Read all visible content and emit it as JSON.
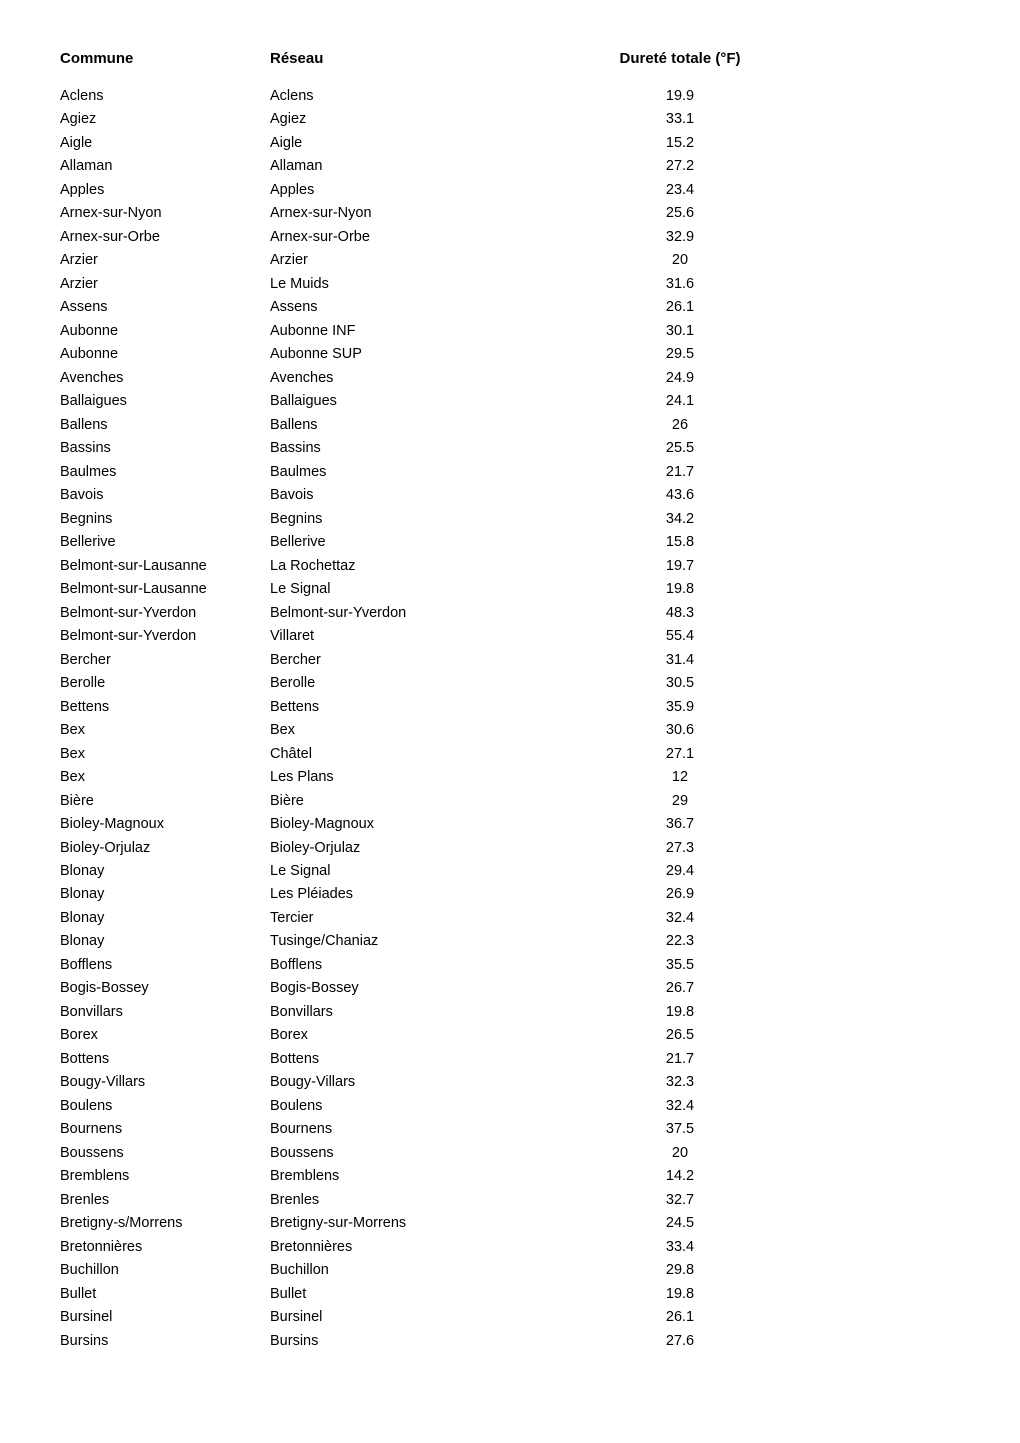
{
  "table": {
    "headers": {
      "commune": "Commune",
      "reseau": "Réseau",
      "durete": "Dureté totale (°F)"
    },
    "rows": [
      {
        "commune": "Aclens",
        "reseau": "Aclens",
        "durete": "19.9"
      },
      {
        "commune": "Agiez",
        "reseau": "Agiez",
        "durete": "33.1"
      },
      {
        "commune": "Aigle",
        "reseau": "Aigle",
        "durete": "15.2"
      },
      {
        "commune": "Allaman",
        "reseau": "Allaman",
        "durete": "27.2"
      },
      {
        "commune": "Apples",
        "reseau": "Apples",
        "durete": "23.4"
      },
      {
        "commune": "Arnex-sur-Nyon",
        "reseau": "Arnex-sur-Nyon",
        "durete": "25.6"
      },
      {
        "commune": "Arnex-sur-Orbe",
        "reseau": "Arnex-sur-Orbe",
        "durete": "32.9"
      },
      {
        "commune": "Arzier",
        "reseau": "Arzier",
        "durete": "20"
      },
      {
        "commune": "Arzier",
        "reseau": "Le Muids",
        "durete": "31.6"
      },
      {
        "commune": "Assens",
        "reseau": "Assens",
        "durete": "26.1"
      },
      {
        "commune": "Aubonne",
        "reseau": "Aubonne INF",
        "durete": "30.1"
      },
      {
        "commune": "Aubonne",
        "reseau": "Aubonne SUP",
        "durete": "29.5"
      },
      {
        "commune": "Avenches",
        "reseau": "Avenches",
        "durete": "24.9"
      },
      {
        "commune": "Ballaigues",
        "reseau": "Ballaigues",
        "durete": "24.1"
      },
      {
        "commune": "Ballens",
        "reseau": "Ballens",
        "durete": "26"
      },
      {
        "commune": "Bassins",
        "reseau": "Bassins",
        "durete": "25.5"
      },
      {
        "commune": "Baulmes",
        "reseau": "Baulmes",
        "durete": "21.7"
      },
      {
        "commune": "Bavois",
        "reseau": "Bavois",
        "durete": "43.6"
      },
      {
        "commune": "Begnins",
        "reseau": "Begnins",
        "durete": "34.2"
      },
      {
        "commune": "Bellerive",
        "reseau": "Bellerive",
        "durete": "15.8"
      },
      {
        "commune": "Belmont-sur-Lausanne",
        "reseau": "La Rochettaz",
        "durete": "19.7"
      },
      {
        "commune": "Belmont-sur-Lausanne",
        "reseau": "Le Signal",
        "durete": "19.8"
      },
      {
        "commune": "Belmont-sur-Yverdon",
        "reseau": "Belmont-sur-Yverdon",
        "durete": "48.3"
      },
      {
        "commune": "Belmont-sur-Yverdon",
        "reseau": "Villaret",
        "durete": "55.4"
      },
      {
        "commune": "Bercher",
        "reseau": "Bercher",
        "durete": "31.4"
      },
      {
        "commune": "Berolle",
        "reseau": "Berolle",
        "durete": "30.5"
      },
      {
        "commune": "Bettens",
        "reseau": "Bettens",
        "durete": "35.9"
      },
      {
        "commune": "Bex",
        "reseau": "Bex",
        "durete": "30.6"
      },
      {
        "commune": "Bex",
        "reseau": "Châtel",
        "durete": "27.1"
      },
      {
        "commune": "Bex",
        "reseau": "Les Plans",
        "durete": "12"
      },
      {
        "commune": "Bière",
        "reseau": "Bière",
        "durete": "29"
      },
      {
        "commune": "Bioley-Magnoux",
        "reseau": "Bioley-Magnoux",
        "durete": "36.7"
      },
      {
        "commune": "Bioley-Orjulaz",
        "reseau": "Bioley-Orjulaz",
        "durete": "27.3"
      },
      {
        "commune": "Blonay",
        "reseau": "Le Signal",
        "durete": "29.4"
      },
      {
        "commune": "Blonay",
        "reseau": "Les Pléiades",
        "durete": "26.9"
      },
      {
        "commune": "Blonay",
        "reseau": "Tercier",
        "durete": "32.4"
      },
      {
        "commune": "Blonay",
        "reseau": "Tusinge/Chaniaz",
        "durete": "22.3"
      },
      {
        "commune": "Bofflens",
        "reseau": "Bofflens",
        "durete": "35.5"
      },
      {
        "commune": "Bogis-Bossey",
        "reseau": "Bogis-Bossey",
        "durete": "26.7"
      },
      {
        "commune": "Bonvillars",
        "reseau": "Bonvillars",
        "durete": "19.8"
      },
      {
        "commune": "Borex",
        "reseau": "Borex",
        "durete": "26.5"
      },
      {
        "commune": "Bottens",
        "reseau": "Bottens",
        "durete": "21.7"
      },
      {
        "commune": "Bougy-Villars",
        "reseau": "Bougy-Villars",
        "durete": "32.3"
      },
      {
        "commune": "Boulens",
        "reseau": "Boulens",
        "durete": "32.4"
      },
      {
        "commune": "Bournens",
        "reseau": "Bournens",
        "durete": "37.5"
      },
      {
        "commune": "Boussens",
        "reseau": "Boussens",
        "durete": "20"
      },
      {
        "commune": "Bremblens",
        "reseau": "Bremblens",
        "durete": "14.2"
      },
      {
        "commune": "Brenles",
        "reseau": "Brenles",
        "durete": "32.7"
      },
      {
        "commune": "Bretigny-s/Morrens",
        "reseau": "Bretigny-sur-Morrens",
        "durete": "24.5"
      },
      {
        "commune": "Bretonnières",
        "reseau": "Bretonnières",
        "durete": "33.4"
      },
      {
        "commune": "Buchillon",
        "reseau": "Buchillon",
        "durete": "29.8"
      },
      {
        "commune": "Bullet",
        "reseau": "Bullet",
        "durete": "19.8"
      },
      {
        "commune": "Bursinel",
        "reseau": "Bursinel",
        "durete": "26.1"
      },
      {
        "commune": "Bursins",
        "reseau": "Bursins",
        "durete": "27.6"
      }
    ]
  }
}
